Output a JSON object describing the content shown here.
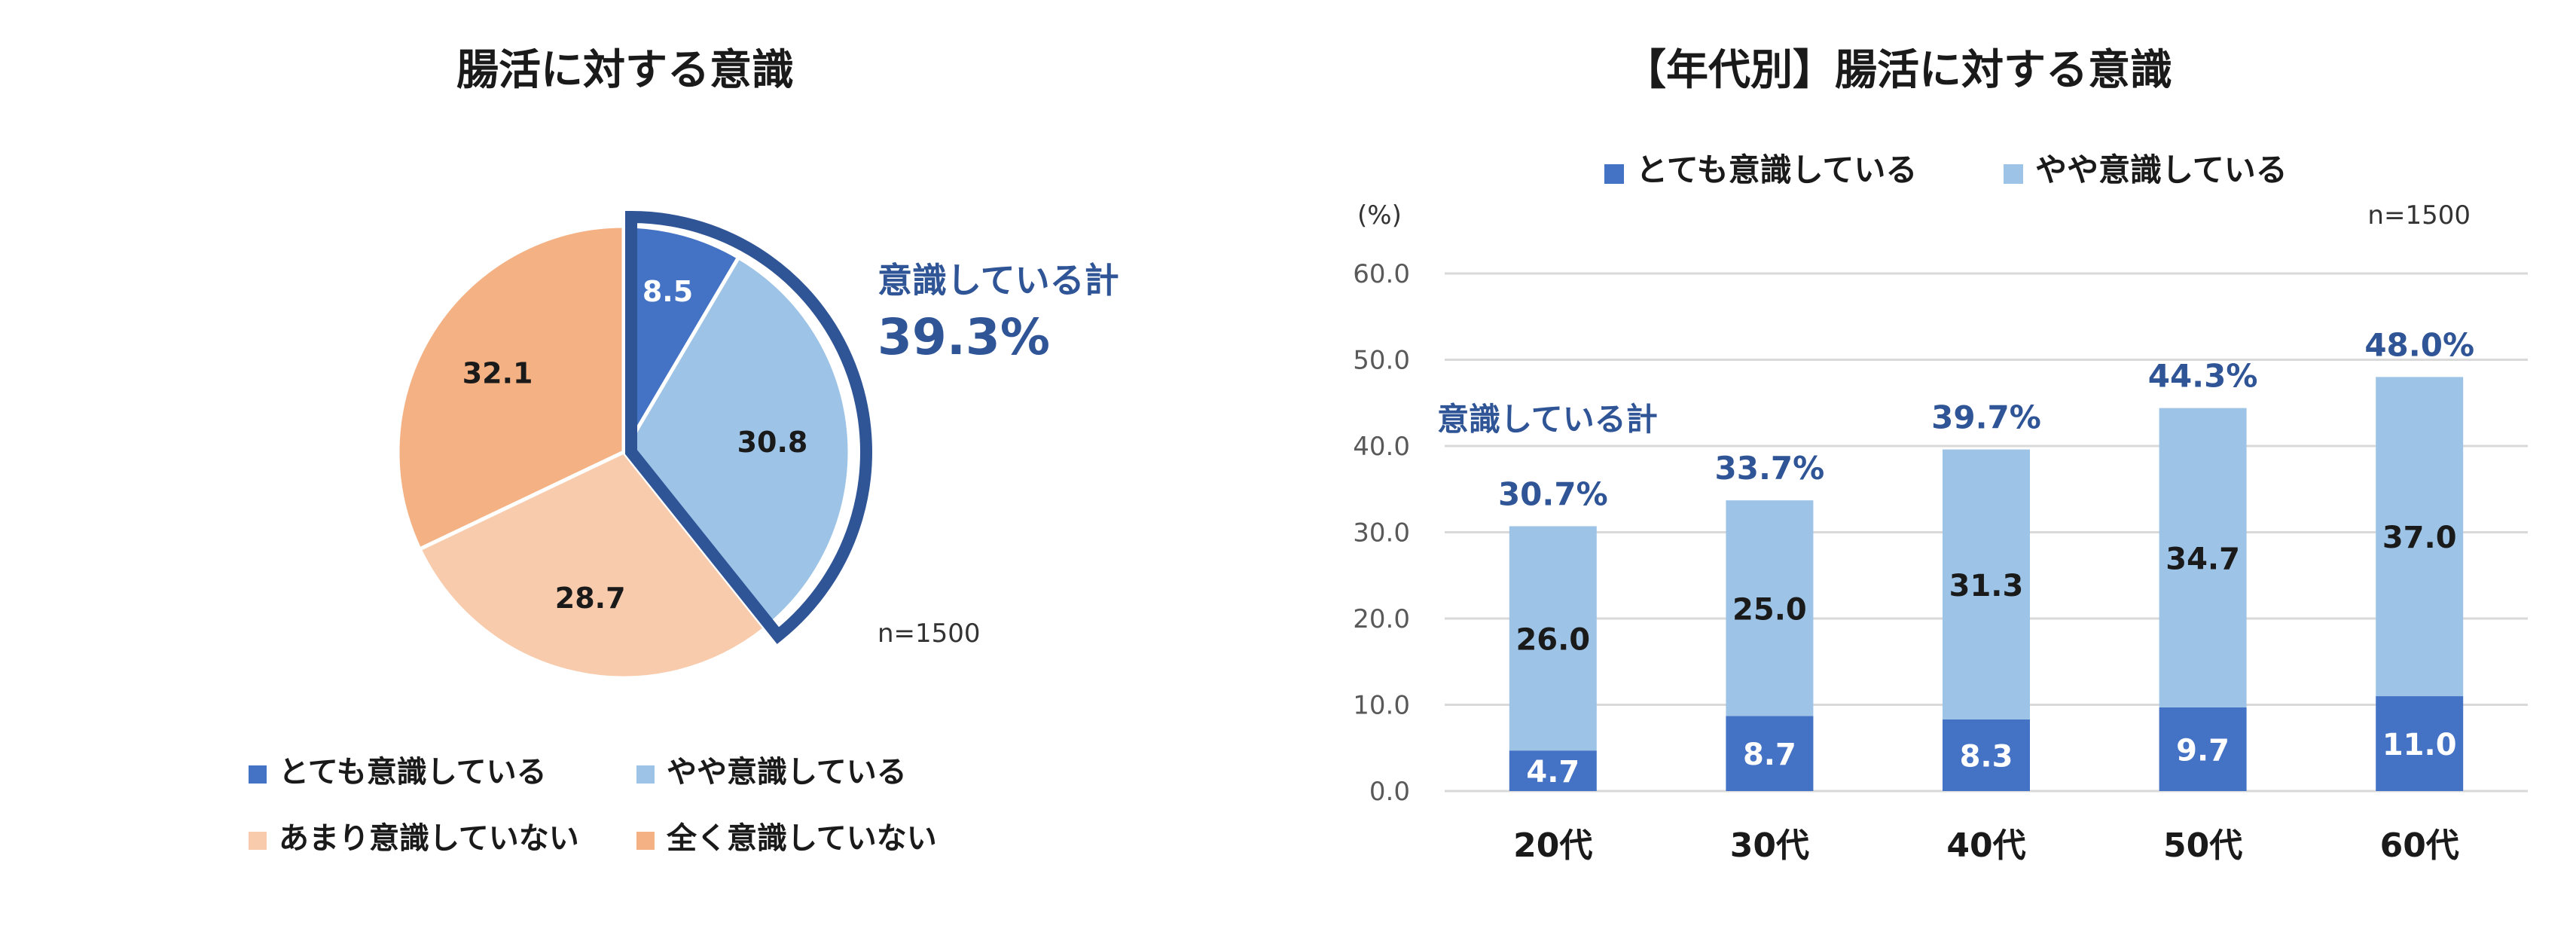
{
  "chart_data": [
    {
      "type": "pie",
      "title": "腸活に対する意識",
      "categories": [
        "とても意識している",
        "やや意識している",
        "あまり意識していない",
        "全く意識していない"
      ],
      "values": [
        8.5,
        30.8,
        28.7,
        32.1
      ],
      "colors": [
        "#4472c4",
        "#9dc3e6",
        "#f8cbad",
        "#f4b183"
      ],
      "highlight": {
        "label": "意識している計",
        "value": "39.3%",
        "outline_color": "#2f5597"
      },
      "note": "n=1500",
      "legend_position": "bottom"
    },
    {
      "type": "bar",
      "stacked": true,
      "title": "【年代別】腸活に対する意識",
      "categories": [
        "20代",
        "30代",
        "40代",
        "50代",
        "60代"
      ],
      "series": [
        {
          "name": "とても意識している",
          "values": [
            4.7,
            8.7,
            8.3,
            9.7,
            11.0
          ],
          "color": "#4472c4"
        },
        {
          "name": "やや意識している",
          "values": [
            26.0,
            25.0,
            31.3,
            34.7,
            37.0
          ],
          "color": "#9dc3e6"
        }
      ],
      "totals": [
        "30.7%",
        "33.7%",
        "39.7%",
        "44.3%",
        "48.0%"
      ],
      "total_label": "意識している計",
      "ylabel": "(%)",
      "ylim": [
        0,
        60
      ],
      "yticks": [
        "0.0",
        "10.0",
        "20.0",
        "30.0",
        "40.0",
        "50.0",
        "60.0"
      ],
      "grid": true,
      "note": "n=1500",
      "legend_position": "top"
    }
  ],
  "colors": {
    "accent_text": "#2f5597",
    "grid": "#d9d9d9",
    "text": "#1a1a1a",
    "tick": "#595959"
  }
}
